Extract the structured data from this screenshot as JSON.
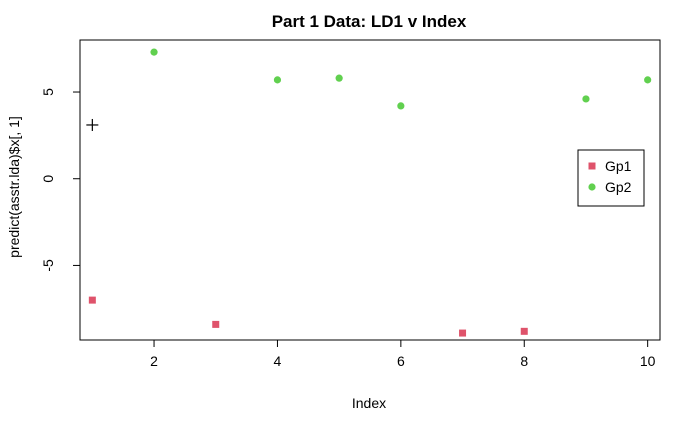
{
  "chart_data": {
    "type": "scatter",
    "title": "Part 1 Data: LD1 v Index",
    "xlabel": "Index",
    "ylabel": "predict(asstr.lda)$x[, 1]",
    "xlim": [
      0.8,
      10.2
    ],
    "ylim": [
      -9.3,
      8.0
    ],
    "x_ticks": [
      2,
      4,
      6,
      8,
      10
    ],
    "y_ticks": [
      5,
      0,
      -5
    ],
    "grid": false,
    "legend_position": "right",
    "series": [
      {
        "name": "Gp1",
        "marker": "square",
        "color": "#DF536B",
        "x": [
          1,
          3,
          7,
          8
        ],
        "y": [
          -7.0,
          -8.4,
          -8.9,
          -8.8
        ]
      },
      {
        "name": "Gp2",
        "marker": "circle",
        "color": "#61D04F",
        "x": [
          2,
          4,
          5,
          6,
          9,
          10
        ],
        "y": [
          7.3,
          5.7,
          5.8,
          4.2,
          4.6,
          5.7
        ]
      }
    ],
    "annotations": [
      {
        "marker": "plus",
        "color": "#000000",
        "x": 1,
        "y": 3.1
      }
    ]
  }
}
